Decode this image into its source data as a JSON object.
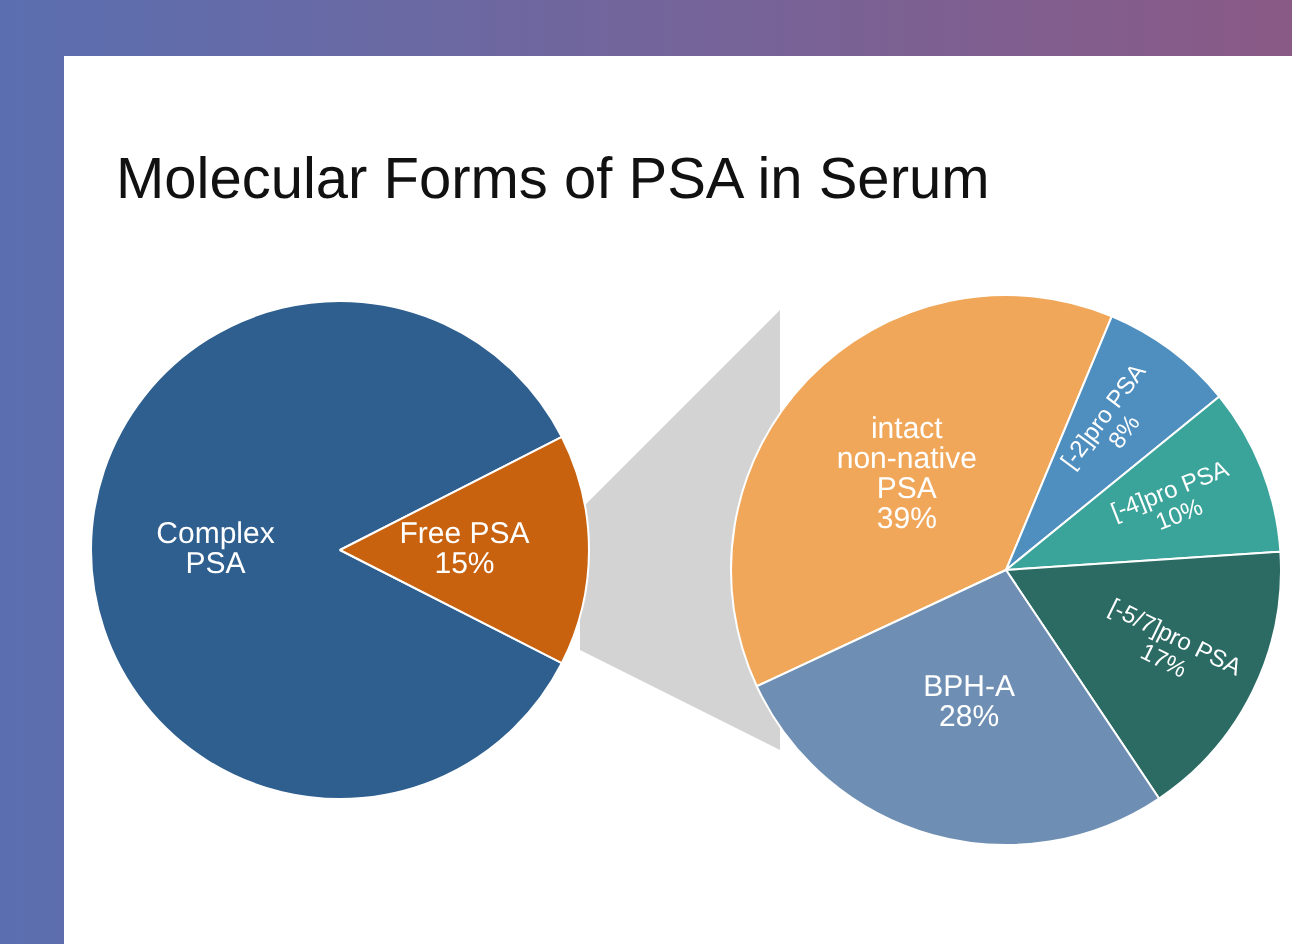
{
  "chart_data": [
    {
      "type": "pie",
      "title": "Molecular Forms of PSA in Serum",
      "categories": [
        "Complex PSA",
        "Free PSA"
      ],
      "values": [
        85,
        15
      ],
      "colors": [
        "#2e5f8f",
        "#c8620f"
      ],
      "value_labels": [
        null,
        "15%"
      ],
      "legend": false
    },
    {
      "type": "pie",
      "categories": [
        "intact non-native PSA",
        "[-2]pro PSA",
        "[-4]pro PSA",
        "[-5/7]pro PSA",
        "BPH-A"
      ],
      "values": [
        39,
        8,
        10,
        17,
        28
      ],
      "colors": [
        "#f0a75a",
        "#4f8fc0",
        "#3aa39a",
        "#2b6b64",
        "#6e8fb3"
      ],
      "value_labels": [
        "39%",
        "8%",
        "10%",
        "17%",
        "28%"
      ],
      "legend": false
    }
  ]
}
